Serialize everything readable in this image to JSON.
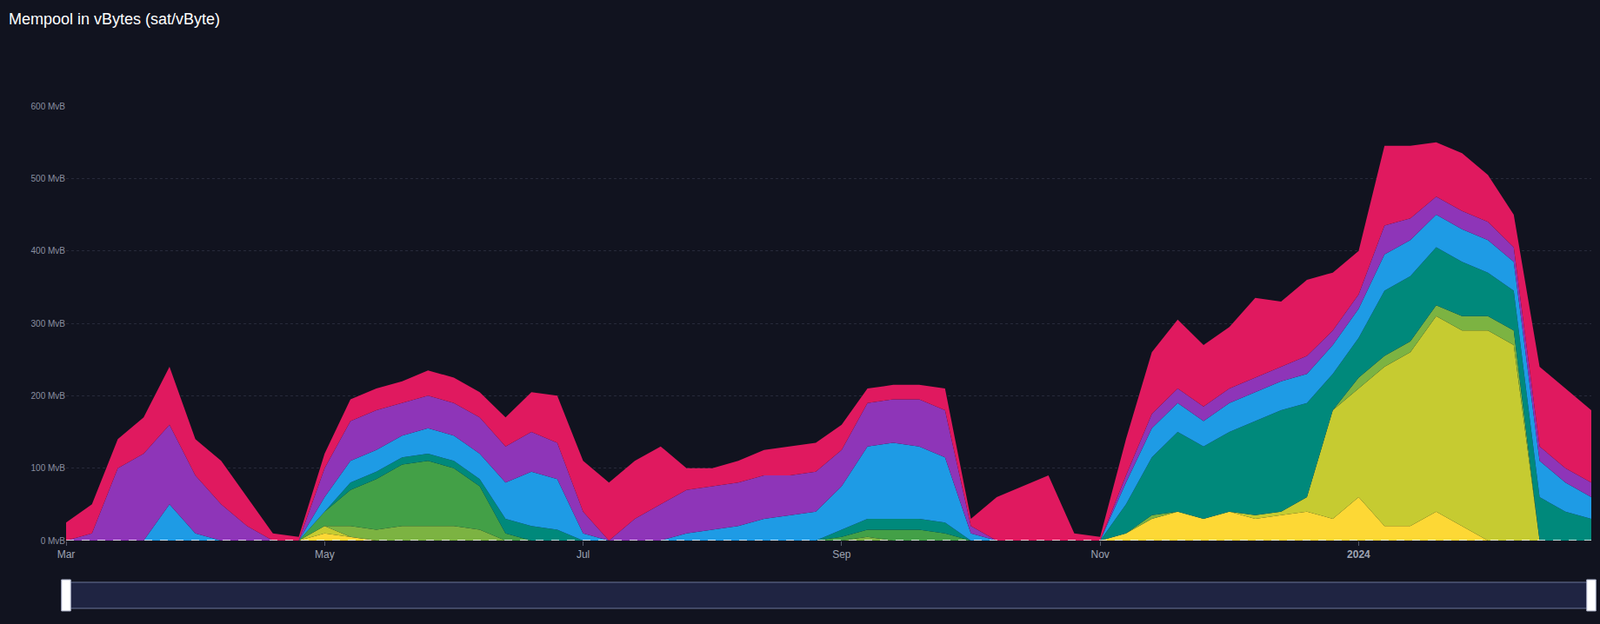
{
  "chart_data": {
    "type": "area",
    "title": "Mempool in vBytes (sat/vByte)",
    "stacked": true,
    "grid": true,
    "categories": [
      "Mar",
      null,
      null,
      null,
      null,
      null,
      null,
      null,
      null,
      null,
      "May",
      null,
      null,
      null,
      null,
      null,
      null,
      null,
      null,
      null,
      "Jul",
      null,
      null,
      null,
      null,
      null,
      null,
      null,
      null,
      null,
      "Sep",
      null,
      null,
      null,
      null,
      null,
      null,
      null,
      null,
      null,
      "Nov",
      null,
      null,
      null,
      null,
      null,
      null,
      null,
      null,
      null,
      "2024",
      null,
      null,
      null,
      null,
      null,
      null,
      null,
      null,
      null
    ],
    "ylim": [
      0,
      600
    ],
    "yticks": [
      {
        "value": 0,
        "label": "0 MvB"
      },
      {
        "value": 100,
        "label": "100 MvB"
      },
      {
        "value": 200,
        "label": "200 MvB"
      },
      {
        "value": 300,
        "label": "300 MvB"
      },
      {
        "value": 400,
        "label": "400 MvB"
      },
      {
        "value": 500,
        "label": "500 MvB"
      },
      {
        "value": 600,
        "label": "600 MvB"
      }
    ],
    "series": [
      {
        "color": "#fdd835",
        "values": [
          0,
          0,
          0,
          0,
          0,
          0,
          0,
          0,
          0,
          0,
          10,
          5,
          0,
          0,
          0,
          0,
          0,
          0,
          0,
          0,
          0,
          0,
          0,
          0,
          0,
          0,
          0,
          0,
          0,
          0,
          0,
          0,
          0,
          0,
          0,
          0,
          0,
          0,
          0,
          0,
          0,
          10,
          30,
          40,
          30,
          40,
          30,
          35,
          40,
          30,
          60,
          20,
          20,
          40,
          20,
          0,
          0,
          0,
          0,
          0
        ]
      },
      {
        "color": "#c6cb31",
        "values": [
          0,
          0,
          0,
          0,
          0,
          0,
          0,
          0,
          0,
          0,
          10,
          0,
          0,
          0,
          0,
          0,
          0,
          0,
          0,
          0,
          0,
          0,
          0,
          0,
          0,
          0,
          0,
          0,
          0,
          0,
          0,
          0,
          0,
          0,
          0,
          0,
          0,
          0,
          0,
          0,
          0,
          0,
          0,
          0,
          0,
          0,
          5,
          5,
          20,
          150,
          150,
          220,
          240,
          270,
          270,
          290,
          270,
          0,
          0,
          0
        ]
      },
      {
        "color": "#7cb342",
        "values": [
          0,
          0,
          0,
          0,
          0,
          0,
          0,
          0,
          0,
          0,
          0,
          15,
          15,
          20,
          20,
          20,
          15,
          0,
          0,
          0,
          0,
          0,
          0,
          0,
          0,
          0,
          0,
          0,
          0,
          0,
          0,
          5,
          0,
          0,
          0,
          0,
          0,
          0,
          0,
          0,
          0,
          0,
          5,
          0,
          0,
          0,
          0,
          0,
          0,
          0,
          15,
          15,
          15,
          15,
          20,
          20,
          20,
          0,
          0,
          0
        ]
      },
      {
        "color": "#43a047",
        "values": [
          0,
          0,
          0,
          0,
          0,
          0,
          0,
          0,
          0,
          0,
          20,
          50,
          70,
          85,
          90,
          80,
          60,
          10,
          0,
          0,
          0,
          0,
          0,
          0,
          0,
          0,
          0,
          0,
          0,
          0,
          5,
          10,
          15,
          15,
          10,
          0,
          0,
          0,
          0,
          0,
          0,
          0,
          0,
          0,
          0,
          0,
          0,
          0,
          0,
          0,
          0,
          0,
          0,
          0,
          0,
          0,
          0,
          0,
          0,
          0
        ]
      },
      {
        "color": "#00897b",
        "values": [
          0,
          0,
          0,
          0,
          0,
          0,
          0,
          0,
          0,
          0,
          0,
          10,
          10,
          10,
          10,
          10,
          10,
          20,
          20,
          15,
          0,
          0,
          0,
          0,
          0,
          0,
          0,
          0,
          0,
          0,
          10,
          15,
          15,
          15,
          15,
          0,
          0,
          0,
          0,
          0,
          0,
          40,
          80,
          110,
          100,
          110,
          130,
          140,
          130,
          50,
          55,
          90,
          90,
          80,
          75,
          60,
          55,
          60,
          40,
          30
        ]
      },
      {
        "color": "#1e9be5",
        "values": [
          0,
          0,
          0,
          0,
          50,
          10,
          0,
          0,
          0,
          0,
          20,
          30,
          30,
          30,
          35,
          35,
          35,
          50,
          75,
          70,
          10,
          0,
          0,
          0,
          10,
          15,
          20,
          30,
          35,
          40,
          60,
          100,
          105,
          100,
          90,
          10,
          0,
          0,
          0,
          0,
          0,
          30,
          40,
          40,
          35,
          40,
          40,
          40,
          40,
          40,
          40,
          50,
          50,
          45,
          45,
          45,
          40,
          50,
          40,
          30
        ]
      },
      {
        "color": "#8e35b8",
        "values": [
          0,
          10,
          100,
          120,
          110,
          80,
          50,
          20,
          0,
          0,
          40,
          55,
          55,
          45,
          45,
          45,
          50,
          50,
          55,
          50,
          30,
          0,
          30,
          50,
          60,
          60,
          60,
          60,
          55,
          55,
          50,
          60,
          60,
          65,
          65,
          10,
          0,
          0,
          0,
          0,
          0,
          10,
          20,
          20,
          20,
          20,
          20,
          20,
          25,
          20,
          20,
          40,
          30,
          25,
          25,
          25,
          20,
          20,
          20,
          20
        ]
      },
      {
        "color": "#e0195f",
        "values": [
          25,
          40,
          40,
          50,
          80,
          50,
          60,
          40,
          10,
          5,
          20,
          30,
          30,
          30,
          35,
          35,
          35,
          40,
          55,
          65,
          70,
          80,
          80,
          80,
          30,
          25,
          30,
          35,
          40,
          40,
          35,
          20,
          20,
          20,
          30,
          10,
          60,
          75,
          90,
          10,
          5,
          50,
          85,
          95,
          85,
          85,
          110,
          90,
          105,
          80,
          60,
          110,
          100,
          75,
          80,
          65,
          45,
          110,
          110,
          100
        ]
      }
    ]
  }
}
